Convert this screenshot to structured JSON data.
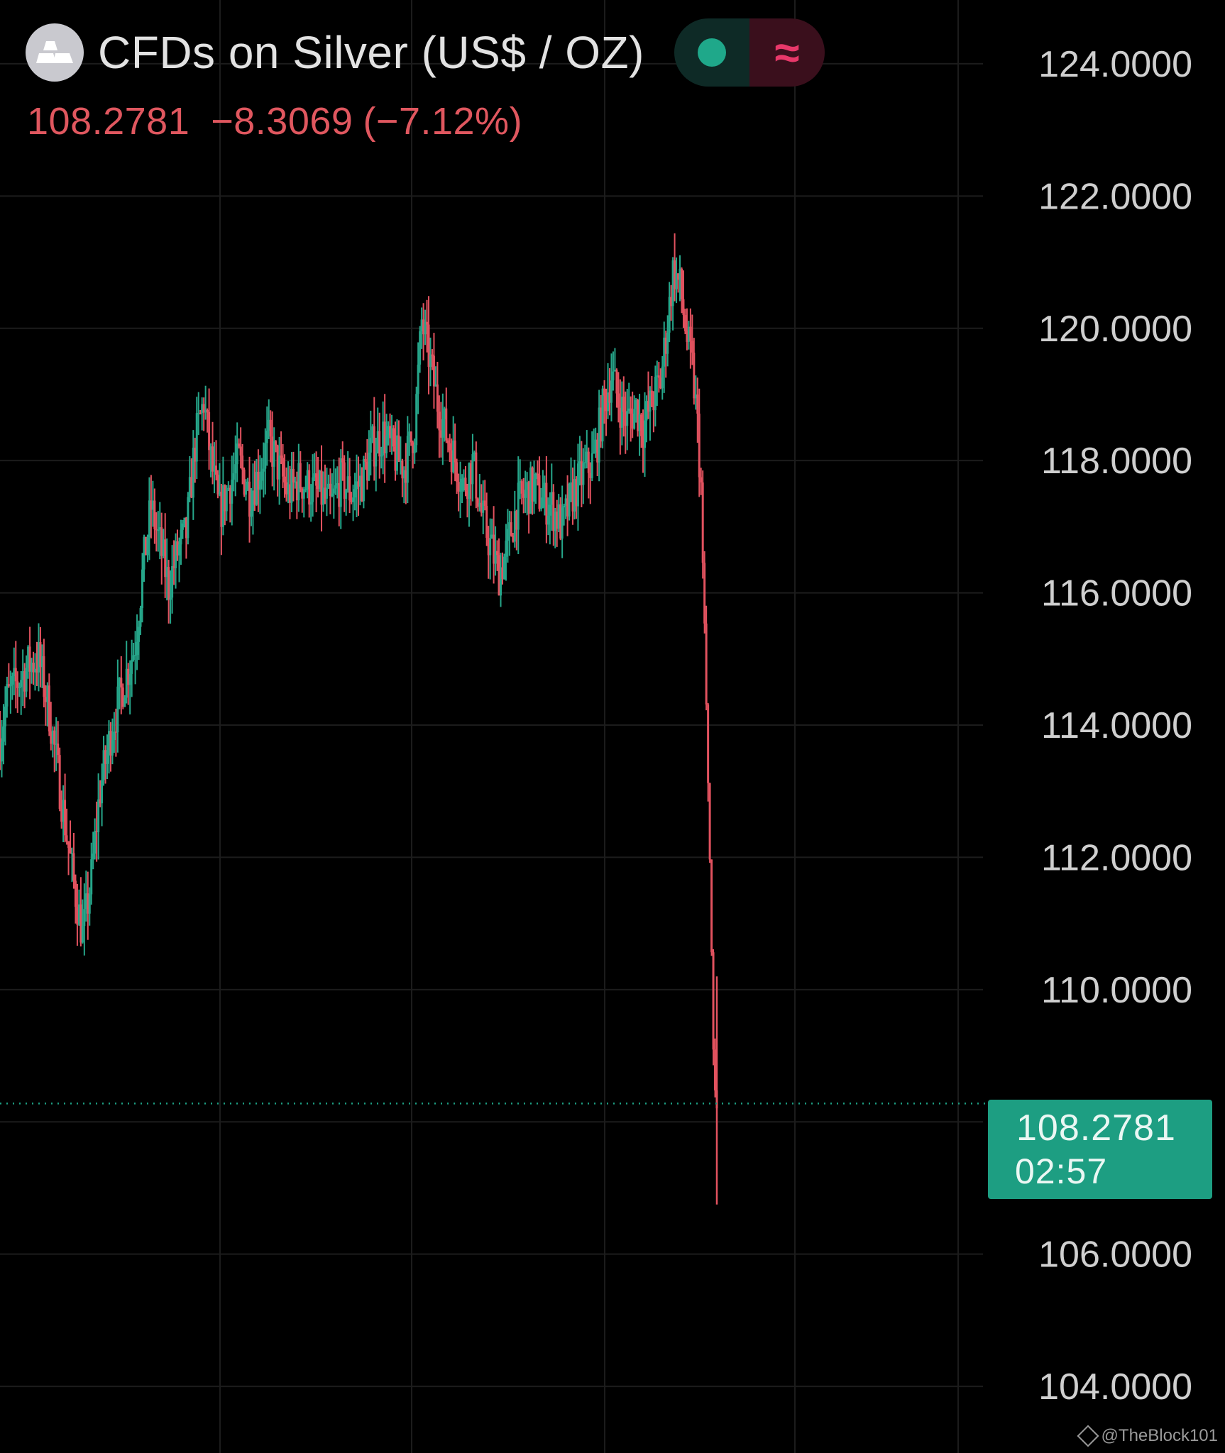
{
  "header": {
    "logo_icon": "silver-bars-icon",
    "title": "CFDs on Silver (US$ / OZ)",
    "toggle_left_icon": "live-dot-icon",
    "toggle_right_icon": "approx-wave-icon",
    "toggle_right_glyph": "≈"
  },
  "quote": {
    "price": "108.2781",
    "change": "−8.3069",
    "change_pct": "(−7.12%)"
  },
  "price_tag": {
    "price": "108.2781",
    "countdown": "02:57"
  },
  "watermark": {
    "text": "@TheBlock101"
  },
  "colors": {
    "background": "#000000",
    "up": "#26a68a",
    "down": "#e2525f",
    "grid": "#1c1c1c",
    "axis_text": "#cfcfcf",
    "price_tag": "#1d9e82"
  },
  "chart_data": {
    "type": "candlestick",
    "title": "CFDs on Silver (US$ / OZ)",
    "ylim": [
      103.4,
      124.6
    ],
    "ytick_labels": [
      "124.0000",
      "122.0000",
      "120.0000",
      "118.0000",
      "116.0000",
      "114.0000",
      "112.0000",
      "110.0000",
      "106.0000",
      "104.0000"
    ],
    "yticks": [
      124,
      122,
      120,
      118,
      116,
      114,
      112,
      110,
      106,
      104
    ],
    "grid": true,
    "last_price": 108.2781,
    "series": [
      {
        "key_points": [
          [
            0,
            113.8
          ],
          [
            10,
            114.4
          ],
          [
            22,
            114.6
          ],
          [
            40,
            114.9
          ],
          [
            55,
            115.0
          ],
          [
            70,
            114.2
          ],
          [
            90,
            112.7
          ],
          [
            105,
            111.6
          ],
          [
            118,
            110.8
          ],
          [
            130,
            111.7
          ],
          [
            142,
            113.0
          ],
          [
            158,
            113.9
          ],
          [
            175,
            114.6
          ],
          [
            192,
            115.2
          ],
          [
            205,
            116.5
          ],
          [
            215,
            117.3
          ],
          [
            228,
            116.7
          ],
          [
            240,
            116.1
          ],
          [
            252,
            116.6
          ],
          [
            265,
            116.9
          ],
          [
            278,
            118.3
          ],
          [
            290,
            118.9
          ],
          [
            300,
            118.0
          ],
          [
            312,
            117.2
          ],
          [
            325,
            117.6
          ],
          [
            340,
            118.0
          ],
          [
            355,
            117.5
          ],
          [
            368,
            117.8
          ],
          [
            382,
            118.3
          ],
          [
            396,
            117.9
          ],
          [
            410,
            117.5
          ],
          [
            425,
            117.7
          ],
          [
            440,
            117.6
          ],
          [
            455,
            117.5
          ],
          [
            470,
            117.3
          ],
          [
            485,
            117.7
          ],
          [
            500,
            117.5
          ],
          [
            515,
            117.7
          ],
          [
            530,
            118.2
          ],
          [
            545,
            118.4
          ],
          [
            560,
            118.1
          ],
          [
            575,
            117.9
          ],
          [
            590,
            118.5
          ],
          [
            600,
            120.1
          ],
          [
            610,
            119.6
          ],
          [
            622,
            118.9
          ],
          [
            635,
            118.4
          ],
          [
            648,
            118.0
          ],
          [
            660,
            117.6
          ],
          [
            672,
            118.0
          ],
          [
            685,
            117.2
          ],
          [
            698,
            116.7
          ],
          [
            710,
            116.3
          ],
          [
            720,
            116.6
          ],
          [
            735,
            117.3
          ],
          [
            748,
            117.5
          ],
          [
            760,
            117.6
          ],
          [
            772,
            117.4
          ],
          [
            785,
            117.3
          ],
          [
            800,
            117.0
          ],
          [
            815,
            117.5
          ],
          [
            830,
            117.8
          ],
          [
            845,
            118.0
          ],
          [
            858,
            118.8
          ],
          [
            870,
            119.3
          ],
          [
            880,
            118.9
          ],
          [
            892,
            118.6
          ],
          [
            905,
            118.8
          ],
          [
            915,
            118.5
          ],
          [
            928,
            118.9
          ],
          [
            940,
            119.2
          ],
          [
            950,
            120.1
          ],
          [
            958,
            120.9
          ],
          [
            968,
            120.6
          ],
          [
            978,
            119.8
          ],
          [
            985,
            119.4
          ],
          [
            992,
            118.6
          ],
          [
            998,
            117.5
          ],
          [
            1002,
            115.8
          ],
          [
            1006,
            114.0
          ],
          [
            1010,
            112.1
          ],
          [
            1013,
            110.4
          ],
          [
            1016,
            108.6
          ],
          [
            1020,
            108.2781
          ]
        ]
      }
    ]
  }
}
